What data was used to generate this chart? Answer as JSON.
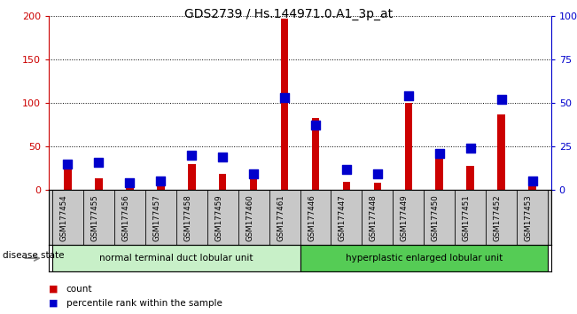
{
  "title": "GDS2739 / Hs.144971.0.A1_3p_at",
  "samples": [
    "GSM177454",
    "GSM177455",
    "GSM177456",
    "GSM177457",
    "GSM177458",
    "GSM177459",
    "GSM177460",
    "GSM177461",
    "GSM177446",
    "GSM177447",
    "GSM177448",
    "GSM177449",
    "GSM177450",
    "GSM177451",
    "GSM177452",
    "GSM177453"
  ],
  "counts": [
    25,
    13,
    3,
    5,
    30,
    19,
    17,
    197,
    83,
    9,
    8,
    100,
    37,
    28,
    87,
    5
  ],
  "percentiles": [
    15,
    16,
    4,
    5,
    20,
    19,
    9,
    53,
    37,
    12,
    9,
    54,
    21,
    24,
    52,
    5
  ],
  "groups": [
    {
      "label": "normal terminal duct lobular unit",
      "start": 0,
      "end": 7,
      "color": "#c8f0c8"
    },
    {
      "label": "hyperplastic enlarged lobular unit",
      "start": 8,
      "end": 15,
      "color": "#55cc55"
    }
  ],
  "left_ylim": [
    0,
    200
  ],
  "right_ylim": [
    0,
    100
  ],
  "left_yticks": [
    0,
    50,
    100,
    150,
    200
  ],
  "right_yticks": [
    0,
    25,
    50,
    75,
    100
  ],
  "right_yticklabels": [
    "0",
    "25",
    "50",
    "75",
    "100%"
  ],
  "left_ycolor": "#cc0000",
  "right_ycolor": "#0000cc",
  "bar_color_red": "#cc0000",
  "marker_color_blue": "#0000cc",
  "grid_color": "black",
  "plot_bg": "white",
  "tick_bg": "#c8c8c8",
  "disease_label": "disease state",
  "legend_count": "count",
  "legend_percentile": "percentile rank within the sample"
}
